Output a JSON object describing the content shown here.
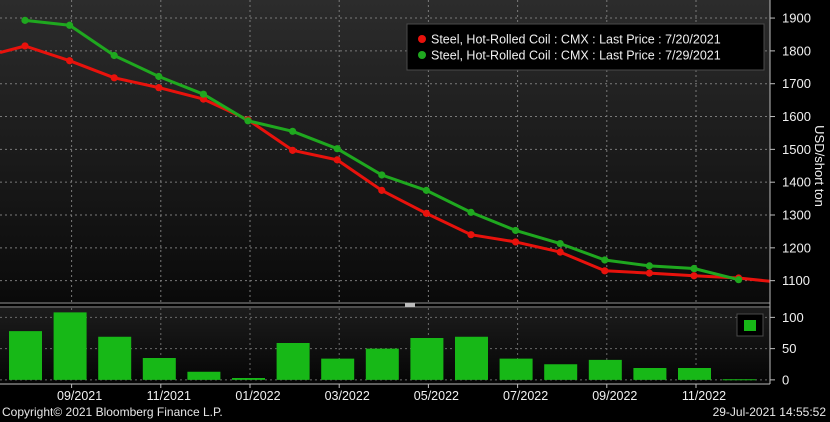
{
  "chart_data": {
    "type": "line",
    "x_ticks": [
      "09/2021",
      "11/2021",
      "01/2022",
      "03/2022",
      "05/2022",
      "07/2022",
      "09/2022",
      "11/2022"
    ],
    "x": [
      "08/2021",
      "09/2021",
      "10/2021",
      "11/2021",
      "12/2021",
      "01/2022",
      "02/2022",
      "03/2022",
      "04/2022",
      "05/2022",
      "06/2022",
      "07/2022",
      "08/2022",
      "09/2022",
      "10/2022",
      "11/2022",
      "12/2022"
    ],
    "series": [
      {
        "name": "Steel, Hot-Rolled Coil : CMX : Last Price : 7/20/2021",
        "color": "#e8120c",
        "values": [
          1815,
          1770,
          1718,
          1688,
          1653,
          1590,
          1497,
          1468,
          1375,
          1305,
          1240,
          1218,
          1187,
          1130,
          1123,
          1115,
          1108
        ]
      },
      {
        "name": "Steel, Hot-Rolled Coil : CMX : Last Price : 7/29/2021",
        "color": "#1fa81f",
        "values": [
          1893,
          1878,
          1786,
          1722,
          1668,
          1587,
          1555,
          1502,
          1422,
          1375,
          1308,
          1253,
          1213,
          1163,
          1145,
          1137,
          1103
        ]
      }
    ],
    "ylabel": "USD/short ton",
    "y_ticks": [
      1100,
      1200,
      1300,
      1400,
      1500,
      1600,
      1700,
      1800,
      1900
    ],
    "ylim": [
      1035,
      1955
    ],
    "legend_position": "top-right",
    "grid": true,
    "lower_panel": {
      "type": "bar",
      "color": "#17b817",
      "values": [
        78,
        108,
        69,
        35,
        13,
        3,
        59,
        34,
        50,
        67,
        69,
        34,
        25,
        32,
        19,
        19,
        1
      ],
      "y_ticks": [
        0,
        50,
        100
      ],
      "ylim": [
        -5,
        115
      ]
    }
  },
  "footer": {
    "copyright": "Copyright© 2021 Bloomberg Finance L.P.",
    "timestamp": "29-Jul-2021 14:55:52"
  }
}
